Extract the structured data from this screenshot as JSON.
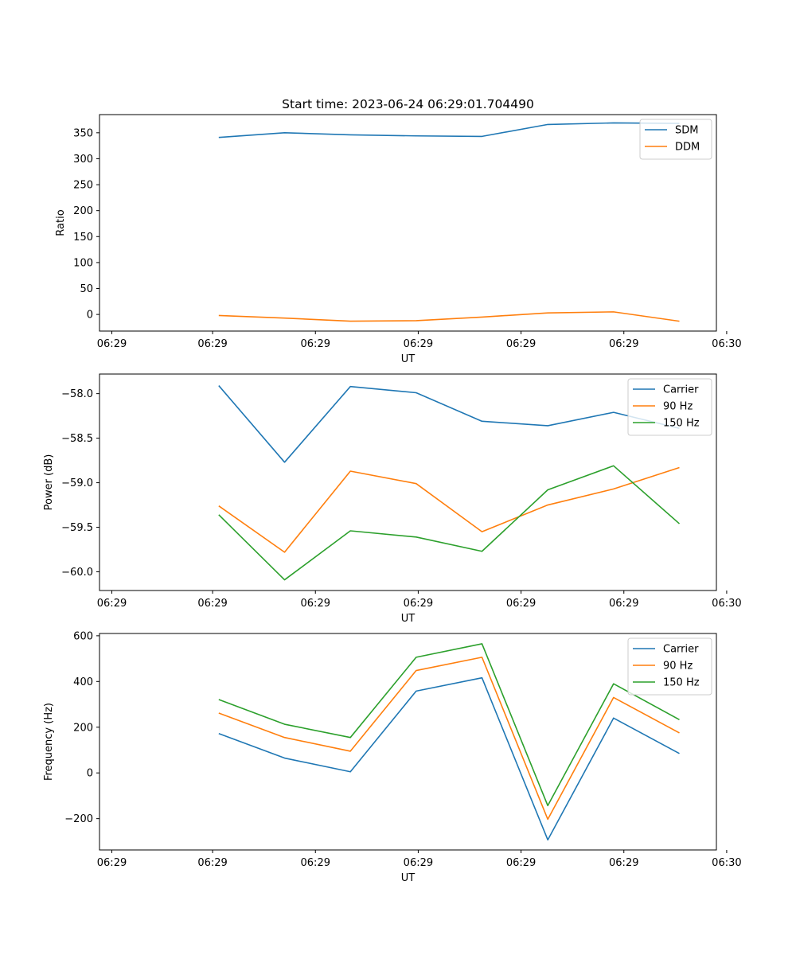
{
  "title": "Start time: 2023-06-24 06:29:01.704490",
  "colors": {
    "blue": "#1f77b4",
    "orange": "#ff7f0e",
    "green": "#2ca02c"
  },
  "chart_data": [
    {
      "type": "line",
      "x": [
        1.4,
        3.0,
        4.6,
        6.2,
        7.8,
        9.4,
        11.0,
        12.6
      ],
      "xlabel": "UT",
      "ylabel": "Ratio",
      "xlim": [
        -1.5,
        13.5
      ],
      "ylim": [
        -32,
        385
      ],
      "x_ticks": [
        -1.2,
        1.25,
        3.75,
        6.25,
        8.75,
        11.25,
        13.75
      ],
      "x_tick_labels": [
        "06:29",
        "06:29",
        "06:29",
        "06:29",
        "06:29",
        "06:29",
        "06:30"
      ],
      "y_ticks": [
        0,
        50,
        100,
        150,
        200,
        250,
        300,
        350
      ],
      "y_tick_labels": [
        "0",
        "50",
        "100",
        "150",
        "200",
        "250",
        "300",
        "350"
      ],
      "legend": "upper right",
      "series": [
        {
          "name": "SDM",
          "color": "#1f77b4",
          "values": [
            341,
            350,
            346,
            344,
            343,
            366,
            369,
            368
          ]
        },
        {
          "name": "DDM",
          "color": "#ff7f0e",
          "values": [
            -2,
            -7,
            -13,
            -12,
            -5,
            3,
            5,
            -13
          ]
        }
      ]
    },
    {
      "type": "line",
      "x": [
        1.4,
        3.0,
        4.6,
        6.2,
        7.8,
        9.4,
        11.0,
        12.6
      ],
      "xlabel": "UT",
      "ylabel": "Power (dB)",
      "xlim": [
        -1.5,
        13.5
      ],
      "ylim": [
        -60.21,
        -57.78
      ],
      "x_ticks": [
        -1.2,
        1.25,
        3.75,
        6.25,
        8.75,
        11.25,
        13.75
      ],
      "x_tick_labels": [
        "06:29",
        "06:29",
        "06:29",
        "06:29",
        "06:29",
        "06:29",
        "06:30"
      ],
      "y_ticks": [
        -60.0,
        -59.5,
        -59.0,
        -58.5,
        -58.0
      ],
      "y_tick_labels": [
        "−60.0",
        "−59.5",
        "−59.0",
        "−58.5",
        "−58.0"
      ],
      "legend": "upper right",
      "series": [
        {
          "name": "Carrier",
          "color": "#1f77b4",
          "values": [
            -57.91,
            -58.77,
            -57.92,
            -57.99,
            -58.31,
            -58.36,
            -58.21,
            -58.39
          ]
        },
        {
          "name": "90 Hz",
          "color": "#ff7f0e",
          "values": [
            -59.26,
            -59.78,
            -58.87,
            -59.01,
            -59.55,
            -59.25,
            -59.07,
            -58.83
          ]
        },
        {
          "name": "150 Hz",
          "color": "#2ca02c",
          "values": [
            -59.36,
            -60.09,
            -59.54,
            -59.61,
            -59.77,
            -59.08,
            -58.81,
            -59.46
          ]
        }
      ]
    },
    {
      "type": "line",
      "x": [
        1.4,
        3.0,
        4.6,
        6.2,
        7.8,
        9.4,
        11.0,
        12.6
      ],
      "xlabel": "UT",
      "ylabel": "Frequency (Hz)",
      "xlim": [
        -1.5,
        13.5
      ],
      "ylim": [
        -337,
        610
      ],
      "x_ticks": [
        -1.2,
        1.25,
        3.75,
        6.25,
        8.75,
        11.25,
        13.75
      ],
      "x_tick_labels": [
        "06:29",
        "06:29",
        "06:29",
        "06:29",
        "06:29",
        "06:29",
        "06:30"
      ],
      "y_ticks": [
        -200,
        0,
        200,
        400,
        600
      ],
      "y_tick_labels": [
        "−200",
        "0",
        "200",
        "400",
        "600"
      ],
      "legend": "upper right",
      "series": [
        {
          "name": "Carrier",
          "color": "#1f77b4",
          "values": [
            172,
            65,
            5,
            358,
            416,
            -293,
            240,
            85
          ]
        },
        {
          "name": "90 Hz",
          "color": "#ff7f0e",
          "values": [
            262,
            155,
            95,
            448,
            506,
            -203,
            330,
            175
          ]
        },
        {
          "name": "150 Hz",
          "color": "#2ca02c",
          "values": [
            321,
            213,
            155,
            506,
            565,
            -143,
            390,
            233
          ]
        }
      ]
    }
  ]
}
